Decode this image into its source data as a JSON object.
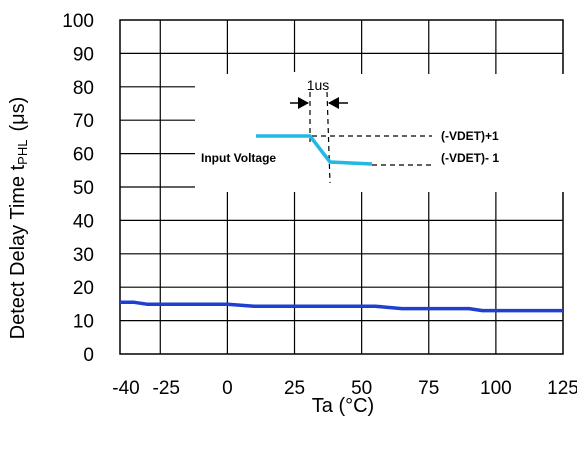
{
  "chart_data": {
    "type": "line",
    "xlabel": "Ta (°C)",
    "ylabel_main": "Detect Delay Time t",
    "ylabel_sub": "PHL",
    "ylabel_unit": "(μs)",
    "xlim": [
      -40,
      125
    ],
    "ylim": [
      0,
      100
    ],
    "x_ticks": [
      -40,
      -25,
      0,
      25,
      50,
      75,
      100,
      125
    ],
    "x_tick_labels": [
      "-40",
      "-25",
      "0",
      "25",
      "50",
      "75",
      "100",
      "125"
    ],
    "y_ticks": [
      0,
      10,
      20,
      30,
      40,
      50,
      60,
      70,
      80,
      90,
      100
    ],
    "y_tick_labels": [
      "0",
      "10",
      "20",
      "30",
      "40",
      "50",
      "60",
      "70",
      "80",
      "90",
      "100"
    ],
    "grid": true,
    "series": [
      {
        "color": "#1f3fd0",
        "x": [
          -40,
          -35,
          -30,
          -20,
          -10,
          0,
          10,
          20,
          30,
          40,
          50,
          55,
          65,
          75,
          85,
          90,
          95,
          100,
          110,
          125
        ],
        "y": [
          15.5,
          15.5,
          14.9,
          14.9,
          14.9,
          14.9,
          14.3,
          14.3,
          14.3,
          14.3,
          14.3,
          14.3,
          13.6,
          13.6,
          13.6,
          13.6,
          13.0,
          13.0,
          13.0,
          13.0
        ]
      }
    ],
    "inset": {
      "label_1us": "1us",
      "label_input": "Input Voltage",
      "label_high": "(-VDET)+1",
      "label_low": "(-VDET)- 1",
      "color": "#21b8e4"
    }
  }
}
